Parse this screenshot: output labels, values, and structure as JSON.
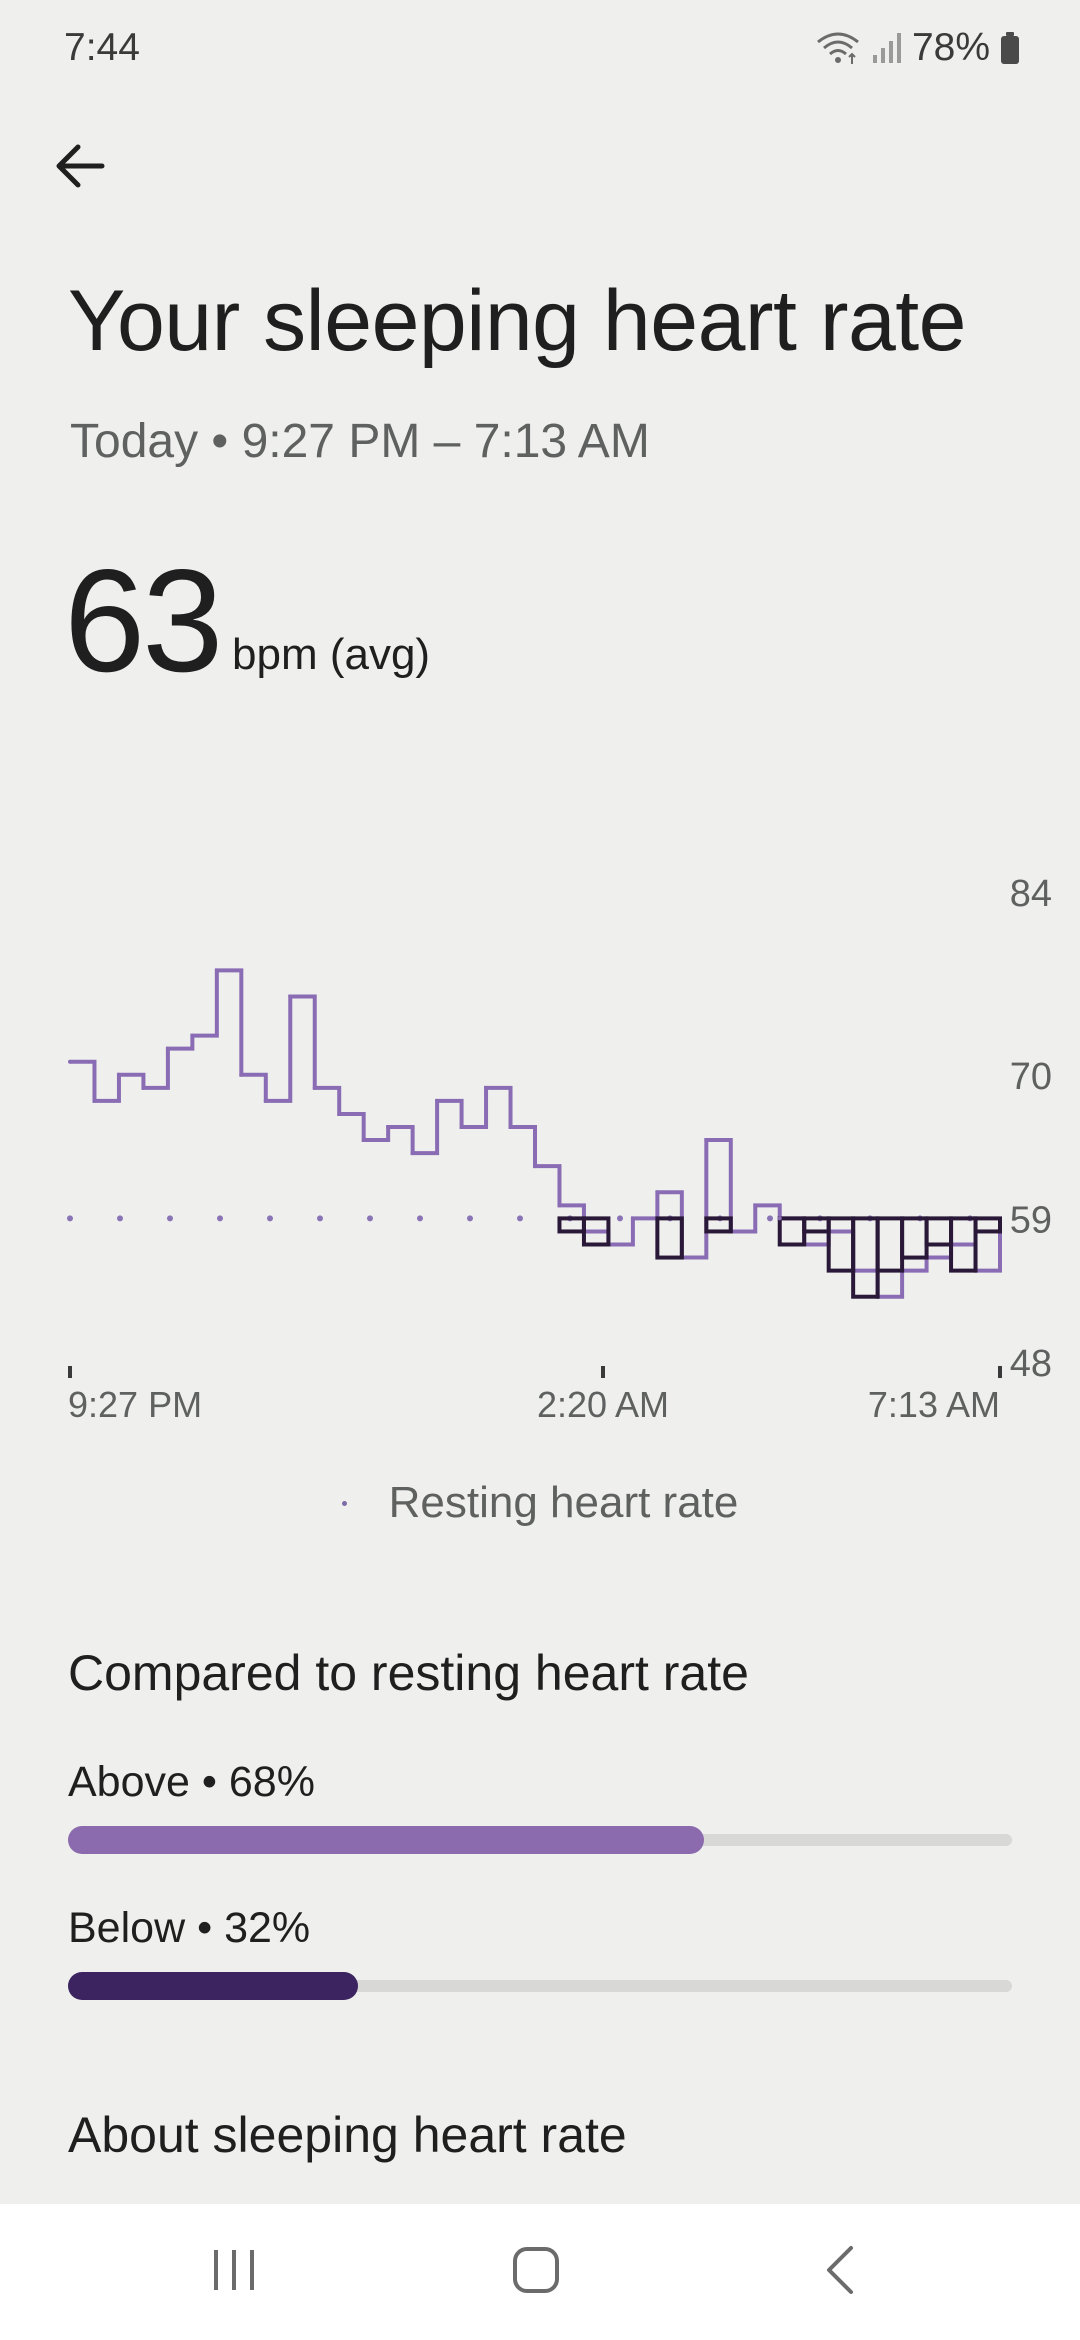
{
  "status_bar": {
    "time": "7:44",
    "battery": "78%"
  },
  "header": {
    "title": "Your sleeping heart rate",
    "date_range": "Today • 9:27 PM – 7:13 AM"
  },
  "summary": {
    "value": "63",
    "unit": "bpm (avg)"
  },
  "chart_data": {
    "type": "line",
    "x_tick_labels": [
      "9:27 PM",
      "2:20 AM",
      "7:13 AM"
    ],
    "y_tick_labels": [
      "84",
      "70",
      "59",
      "48"
    ],
    "ylim": [
      48,
      84
    ],
    "resting_heart_rate": 59,
    "x": [
      "9:27 PM",
      "9:45 PM",
      "10:00 PM",
      "10:15 PM",
      "10:30 PM",
      "10:45 PM",
      "11:00 PM",
      "11:15 PM",
      "11:30 PM",
      "11:45 PM",
      "12:00 AM",
      "12:15 AM",
      "12:30 AM",
      "12:45 AM",
      "1:00 AM",
      "1:15 AM",
      "1:30 AM",
      "1:45 AM",
      "2:00 AM",
      "2:20 AM",
      "2:35 AM",
      "2:50 AM",
      "3:05 AM",
      "3:20 AM",
      "3:35 AM",
      "3:50 AM",
      "4:05 AM",
      "4:20 AM",
      "4:35 AM",
      "4:50 AM",
      "5:05 AM",
      "5:20 AM",
      "5:35 AM",
      "5:50 AM",
      "6:05 AM",
      "6:20 AM",
      "6:35 AM",
      "6:50 AM",
      "7:13 AM"
    ],
    "values": [
      71,
      68,
      70,
      69,
      72,
      73,
      78,
      70,
      68,
      76,
      69,
      67,
      65,
      66,
      64,
      68,
      66,
      69,
      66,
      63,
      60,
      58,
      57,
      59,
      61,
      56,
      65,
      58,
      60,
      59,
      57,
      58,
      55,
      53,
      55,
      56,
      57,
      55,
      58
    ],
    "series_legend": "Resting heart rate"
  },
  "comparison": {
    "title": "Compared to resting heart rate",
    "above": {
      "label": "Above • 68%",
      "percent": 68
    },
    "below": {
      "label": "Below • 32%",
      "percent": 32
    }
  },
  "about": {
    "title": "About sleeping heart rate"
  },
  "colors": {
    "above": "#8b6aae",
    "below": "#2a1838",
    "track": "#d8d8d6"
  },
  "icons": {
    "back": "arrow-left-icon",
    "wifi": "wifi-icon",
    "signal": "signal-icon",
    "battery": "battery-icon",
    "nav_recents": "recents-icon",
    "nav_home": "home-icon",
    "nav_back": "chevron-left-icon"
  }
}
